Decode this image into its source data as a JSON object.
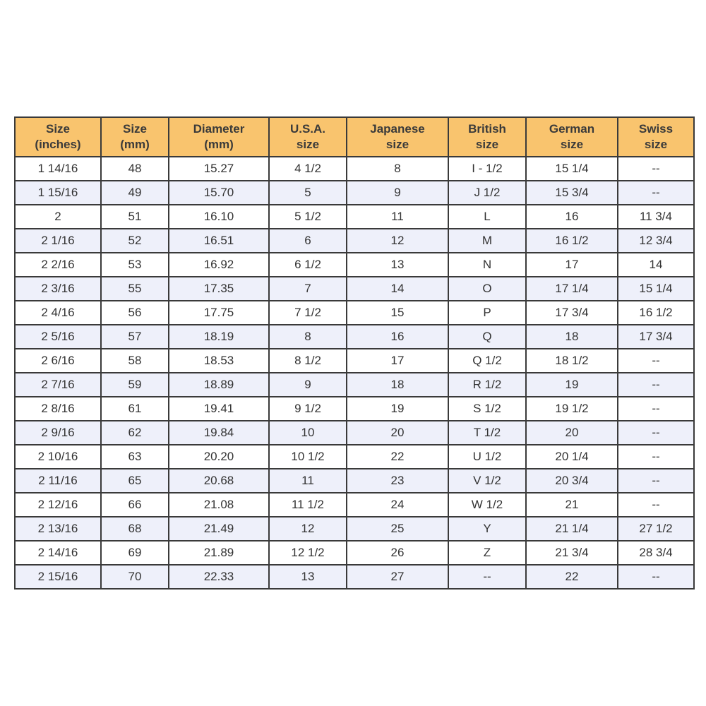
{
  "colors": {
    "header_bg": "#f9c46e",
    "alt_row_bg": "#eef0fa",
    "border": "#3a3a3a"
  },
  "headers": [
    "Size\n(inches)",
    "Size\n(mm)",
    "Diameter\n(mm)",
    "U.S.A.\nsize",
    "Japanese\nsize",
    "British\nsize",
    "German\nsize",
    "Swiss\nsize"
  ],
  "rows": [
    [
      "1 14/16",
      "48",
      "15.27",
      "4 1/2",
      "8",
      "I - 1/2",
      "15 1/4",
      "--"
    ],
    [
      "1 15/16",
      "49",
      "15.70",
      "5",
      "9",
      "J 1/2",
      "15 3/4",
      "--"
    ],
    [
      "2",
      "51",
      "16.10",
      "5 1/2",
      "11",
      "L",
      "16",
      "11 3/4"
    ],
    [
      "2 1/16",
      "52",
      "16.51",
      "6",
      "12",
      "M",
      "16 1/2",
      "12 3/4"
    ],
    [
      "2 2/16",
      "53",
      "16.92",
      "6 1/2",
      "13",
      "N",
      "17",
      "14"
    ],
    [
      "2 3/16",
      "55",
      "17.35",
      "7",
      "14",
      "O",
      "17 1/4",
      "15 1/4"
    ],
    [
      "2 4/16",
      "56",
      "17.75",
      "7 1/2",
      "15",
      "P",
      "17 3/4",
      "16 1/2"
    ],
    [
      "2 5/16",
      "57",
      "18.19",
      "8",
      "16",
      "Q",
      "18",
      "17 3/4"
    ],
    [
      "2 6/16",
      "58",
      "18.53",
      "8 1/2",
      "17",
      "Q 1/2",
      "18 1/2",
      "--"
    ],
    [
      "2 7/16",
      "59",
      "18.89",
      "9",
      "18",
      "R 1/2",
      "19",
      "--"
    ],
    [
      "2 8/16",
      "61",
      "19.41",
      "9 1/2",
      "19",
      "S 1/2",
      "19 1/2",
      "--"
    ],
    [
      "2 9/16",
      "62",
      "19.84",
      "10",
      "20",
      "T 1/2",
      "20",
      "--"
    ],
    [
      "2 10/16",
      "63",
      "20.20",
      "10 1/2",
      "22",
      "U 1/2",
      "20 1/4",
      "--"
    ],
    [
      "2 11/16",
      "65",
      "20.68",
      "11",
      "23",
      "V 1/2",
      "20 3/4",
      "--"
    ],
    [
      "2 12/16",
      "66",
      "21.08",
      "11 1/2",
      "24",
      "W 1/2",
      "21",
      "--"
    ],
    [
      "2 13/16",
      "68",
      "21.49",
      "12",
      "25",
      "Y",
      "21 1/4",
      "27 1/2"
    ],
    [
      "2 14/16",
      "69",
      "21.89",
      "12 1/2",
      "26",
      "Z",
      "21 3/4",
      "28 3/4"
    ],
    [
      "2 15/16",
      "70",
      "22.33",
      "13",
      "27",
      "--",
      "22",
      "--"
    ]
  ]
}
